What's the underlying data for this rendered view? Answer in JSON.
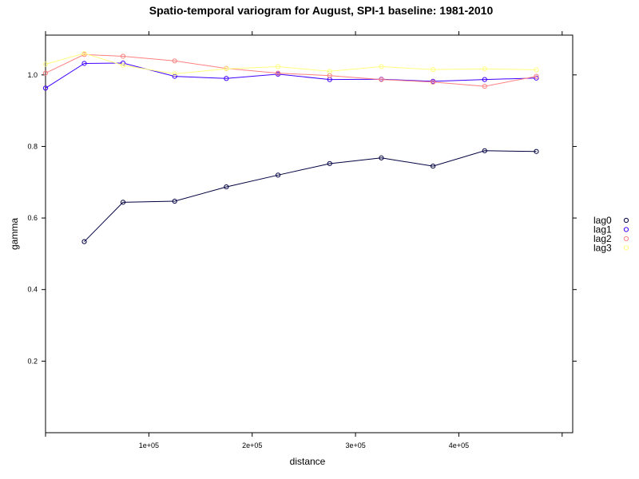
{
  "chart_data": {
    "type": "line",
    "title": "Spatio-temporal variogram for August, SPI-1 baseline: 1981-2010",
    "xlabel": "distance",
    "ylabel": "gamma",
    "xlim": [
      0,
      500000
    ],
    "ylim": [
      0,
      1.1
    ],
    "x_ticks": [
      100000,
      200000,
      300000,
      400000
    ],
    "x_tick_labels": [
      "1e+05",
      "2e+05",
      "3e+05",
      "4e+05"
    ],
    "y_ticks": [
      0.2,
      0.4,
      0.6,
      0.8,
      1.0
    ],
    "y_tick_labels": [
      "0.2",
      "0.4",
      "0.6",
      "0.8",
      "1.0"
    ],
    "legend_position": "right",
    "grid": false,
    "series": [
      {
        "name": "lag0",
        "color": "#000040",
        "x": [
          37500,
          75000,
          125000,
          175000,
          225000,
          275000,
          325000,
          375000,
          425000,
          475000
        ],
        "values": [
          0.534,
          0.644,
          0.647,
          0.687,
          0.72,
          0.752,
          0.768,
          0.745,
          0.788,
          0.786
        ]
      },
      {
        "name": "lag1",
        "color": "#4000ff",
        "x": [
          0,
          37500,
          75000,
          125000,
          175000,
          225000,
          275000,
          325000,
          375000,
          425000,
          475000
        ],
        "values": [
          0.963,
          1.032,
          1.033,
          0.996,
          0.99,
          1.002,
          0.987,
          0.988,
          0.982,
          0.987,
          0.991
        ]
      },
      {
        "name": "lag2",
        "color": "#ff8080",
        "x": [
          0,
          37500,
          75000,
          125000,
          175000,
          225000,
          275000,
          325000,
          375000,
          425000,
          475000
        ],
        "values": [
          1.005,
          1.057,
          1.052,
          1.039,
          1.018,
          1.005,
          0.998,
          0.987,
          0.98,
          0.968,
          0.996
        ]
      },
      {
        "name": "lag3",
        "color": "#ffff80",
        "x": [
          0,
          37500,
          75000,
          125000,
          175000,
          225000,
          275000,
          325000,
          375000,
          425000,
          475000
        ],
        "values": [
          1.03,
          1.06,
          1.027,
          1.003,
          1.017,
          1.023,
          1.01,
          1.023,
          1.015,
          1.017,
          1.014
        ]
      }
    ]
  }
}
